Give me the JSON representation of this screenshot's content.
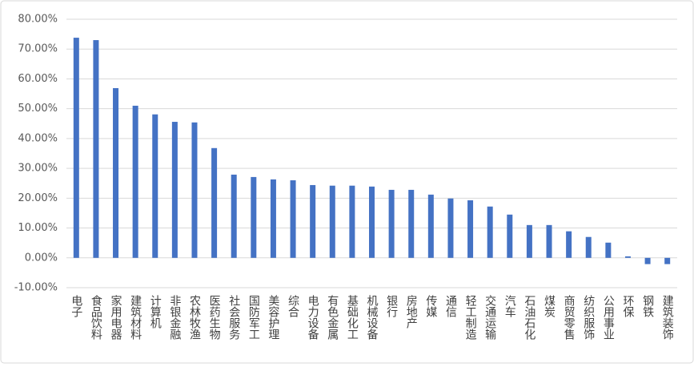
{
  "chart_data": {
    "type": "bar",
    "categories": [
      "电子",
      "食品饮料",
      "家用电器",
      "建筑材料",
      "计算机",
      "非银金融",
      "农林牧渔",
      "医药生物",
      "社会服务",
      "国防军工",
      "美容护理",
      "综合",
      "电力设备",
      "有色金属",
      "基础化工",
      "机械设备",
      "银行",
      "房地产",
      "传媒",
      "通信",
      "轻工制造",
      "交通运输",
      "汽车",
      "石油石化",
      "煤炭",
      "商贸零售",
      "纺织服饰",
      "公用事业",
      "环保",
      "钢铁",
      "建筑装饰"
    ],
    "values": [
      73.8,
      73.0,
      56.9,
      51.0,
      48.1,
      45.6,
      45.4,
      36.8,
      27.9,
      27.1,
      26.3,
      26.0,
      24.4,
      24.2,
      24.2,
      23.9,
      22.8,
      22.8,
      21.2,
      19.9,
      19.3,
      17.2,
      14.5,
      11.0,
      11.0,
      8.9,
      7.0,
      5.1,
      0.5,
      -2.1,
      -2.1
    ],
    "color": "#4472c4",
    "ylim": [
      -10,
      80
    ],
    "yticks": [
      {
        "value": -10,
        "label": "-10.00%"
      },
      {
        "value": 0,
        "label": "0.00%"
      },
      {
        "value": 10,
        "label": "10.00%"
      },
      {
        "value": 20,
        "label": "20.00%"
      },
      {
        "value": 30,
        "label": "30.00%"
      },
      {
        "value": 40,
        "label": "40.00%"
      },
      {
        "value": 50,
        "label": "50.00%"
      },
      {
        "value": 60,
        "label": "60.00%"
      },
      {
        "value": 70,
        "label": "70.00%"
      },
      {
        "value": 80,
        "label": "80.00%"
      }
    ],
    "grid": true
  }
}
